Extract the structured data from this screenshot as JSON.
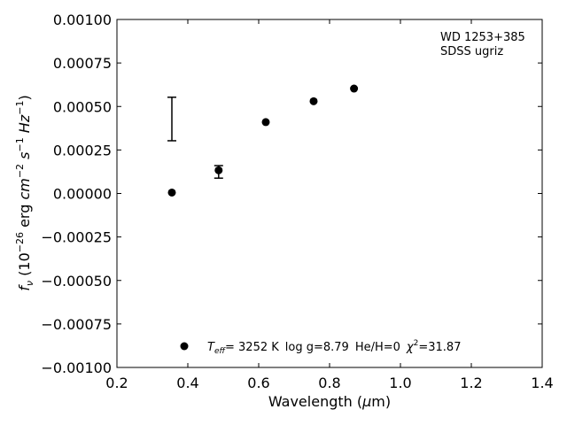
{
  "chart_data": {
    "type": "scatter",
    "title": "",
    "xlabel": "Wavelength (μm)",
    "ylabel": "f_ν (10^-26 erg cm^-2 s^-1 Hz^-1)",
    "xlim": [
      0.2,
      1.4
    ],
    "ylim": [
      -0.001,
      0.001
    ],
    "x_ticks": [
      "0.2",
      "0.4",
      "0.6",
      "0.8",
      "1.0",
      "1.2",
      "1.4"
    ],
    "y_ticks": [
      "0.00100",
      "0.00075",
      "0.00050",
      "0.00025",
      "0.00000",
      "−0.00025",
      "−0.00050",
      "−0.00075",
      "−0.00100"
    ],
    "grid": false,
    "legend_position": "bottom",
    "annotation_lines": [
      "WD 1253+385",
      "SDSS ugriz"
    ],
    "legend": {
      "teff_label": "T",
      "teff_sub": "eff",
      "teff_value": "=  3252 K",
      "logg": "log g=8.79",
      "heh": "He/H=0",
      "chi_label": "χ",
      "chi_value": "=31.87"
    },
    "points": [
      {
        "x": 0.355,
        "y": 5.2e-06
      },
      {
        "x": 0.487,
        "y": 0.000133,
        "yerr_low": 8.8e-05,
        "yerr_high": 0.00016
      },
      {
        "x": 0.62,
        "y": 0.00041
      },
      {
        "x": 0.755,
        "y": 0.00053
      },
      {
        "x": 0.869,
        "y": 0.000603
      }
    ],
    "error_bar_sample": {
      "x": 0.355,
      "y_low": 0.000303,
      "y_high": 0.000553
    }
  }
}
